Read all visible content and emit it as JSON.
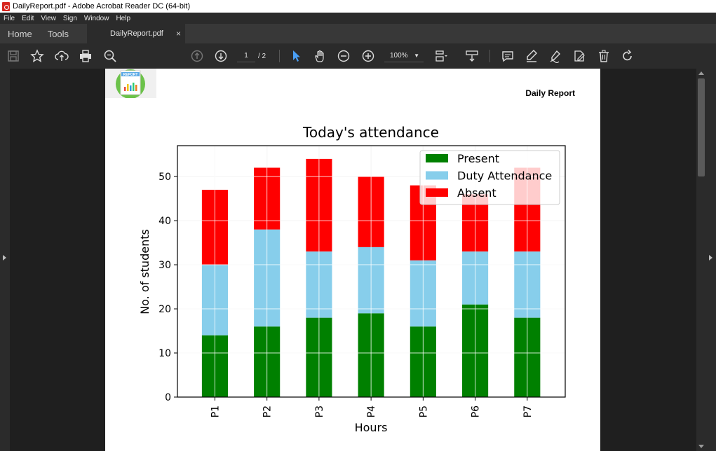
{
  "window": {
    "title": "DailyReport.pdf - Adobe Acrobat Reader DC (64-bit)"
  },
  "menu": [
    "File",
    "Edit",
    "View",
    "Sign",
    "Window",
    "Help"
  ],
  "tabs": {
    "home": "Home",
    "tools": "Tools",
    "document": "DailyReport.pdf",
    "close": "×"
  },
  "toolbar": {
    "page_current": "1",
    "page_total": "/ 2",
    "zoom": "100%"
  },
  "page": {
    "report_title": "Daily Report",
    "logo_label": "REPORT"
  },
  "colors": {
    "present": "#008000",
    "duty": "#87ceeb",
    "absent": "#ff0000",
    "accent": "#4a9ff5"
  },
  "chart_data": {
    "type": "bar",
    "stacked": true,
    "title": "Today's attendance",
    "xlabel": "Hours",
    "ylabel": "No. of students",
    "categories": [
      "P1",
      "P2",
      "P3",
      "P4",
      "P5",
      "P6",
      "P7"
    ],
    "ylim": [
      0,
      57
    ],
    "yticks": [
      0,
      10,
      20,
      30,
      40,
      50
    ],
    "grid": true,
    "legend_position": "top-right",
    "series": [
      {
        "name": "Present",
        "color": "#008000",
        "values": [
          14,
          16,
          18,
          19,
          16,
          21,
          18
        ]
      },
      {
        "name": "Duty Attendance",
        "color": "#87ceeb",
        "values": [
          16,
          22,
          15,
          15,
          15,
          12,
          15
        ]
      },
      {
        "name": "Absent",
        "color": "#ff0000",
        "values": [
          17,
          14,
          21,
          16,
          17,
          13,
          19
        ]
      }
    ]
  }
}
